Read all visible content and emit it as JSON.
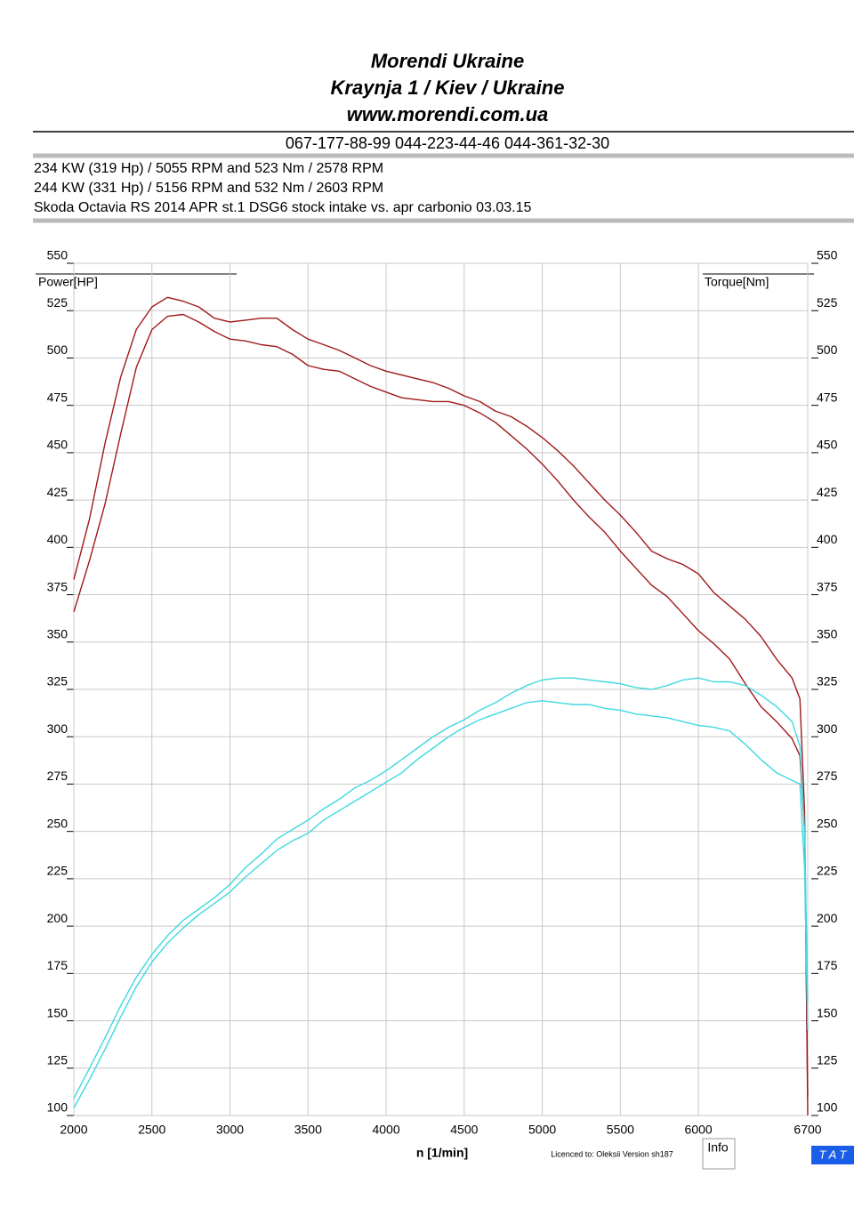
{
  "header": {
    "lines": [
      "Morendi Ukraine",
      "Kraynja 1 / Kiev / Ukraine",
      "www.morendi.com.ua"
    ],
    "phone": "067-177-88-99 044-223-44-46 044-361-32-30",
    "info": [
      "234 KW (319 Hp) /  5055 RPM  and   523 Nm /  2578 RPM",
      "244 KW (331 Hp) /  5156 RPM  and   532 Nm /  2603 RPM",
      "Skoda Octavia RS 2014 APR st.1 DSG6 stock intake vs. apr carbonio 03.03.15"
    ]
  },
  "chart_data": {
    "type": "line",
    "xlabel": "n  [1/min]",
    "ylabel": "Power[HP]",
    "y2label": "Torque[Nm]",
    "xlim": [
      2000,
      6700
    ],
    "xticks": [
      2000,
      2500,
      3000,
      3500,
      4000,
      4500,
      5000,
      5500,
      6000,
      6700
    ],
    "ylim": [
      100,
      550
    ],
    "yticks": [
      100,
      125,
      150,
      175,
      200,
      225,
      250,
      275,
      300,
      325,
      350,
      375,
      400,
      425,
      450,
      475,
      500,
      525,
      550
    ],
    "y2lim": [
      100,
      550
    ],
    "y2ticks": [
      100,
      125,
      150,
      175,
      200,
      225,
      250,
      275,
      300,
      325,
      350,
      375,
      400,
      425,
      450,
      475,
      500,
      525,
      550
    ],
    "grid": true,
    "x": [
      2000,
      2100,
      2200,
      2300,
      2400,
      2500,
      2600,
      2700,
      2800,
      2900,
      3000,
      3100,
      3200,
      3300,
      3400,
      3500,
      3600,
      3700,
      3800,
      3900,
      4000,
      4100,
      4200,
      4300,
      4400,
      4500,
      4600,
      4700,
      4800,
      4900,
      5000,
      5100,
      5200,
      5300,
      5400,
      5500,
      5600,
      5700,
      5800,
      5900,
      6000,
      6100,
      6200,
      6300,
      6400,
      6500,
      6600,
      6650,
      6680,
      6700
    ],
    "series": [
      {
        "color": "#a01818",
        "axis": "y2",
        "values": [
          383,
          415,
          455,
          490,
          515,
          527,
          532,
          530,
          527,
          521,
          519,
          520,
          521,
          521,
          515,
          510,
          507,
          504,
          500,
          496,
          493,
          491,
          489,
          487,
          484,
          480,
          477,
          472,
          469,
          464,
          458,
          451,
          443,
          434,
          425,
          417,
          408,
          398,
          394,
          391,
          386,
          376,
          369,
          362,
          353,
          341,
          331,
          320,
          260,
          100
        ]
      },
      {
        "color": "#a01818",
        "axis": "y2",
        "values": [
          366,
          393,
          423,
          460,
          495,
          515,
          522,
          523,
          519,
          514,
          510,
          509,
          507,
          506,
          502,
          496,
          494,
          493,
          489,
          485,
          482,
          479,
          478,
          477,
          477,
          475,
          471,
          466,
          459,
          452,
          444,
          435,
          425,
          416,
          408,
          398,
          389,
          380,
          374,
          365,
          356,
          349,
          341,
          328,
          316,
          308,
          299,
          290,
          250,
          110
        ]
      },
      {
        "color": "#40d8e0",
        "values": [
          109,
          125,
          141,
          158,
          173,
          185,
          195,
          203,
          209,
          215,
          222,
          231,
          238,
          246,
          251,
          256,
          262,
          267,
          273,
          277,
          282,
          288,
          294,
          300,
          305,
          309,
          314,
          318,
          323,
          327,
          330,
          331,
          331,
          330,
          329,
          328,
          326,
          325,
          327,
          330,
          331,
          329,
          329,
          327,
          322,
          316,
          308,
          295,
          250,
          160
        ]
      },
      {
        "color": "#40d8e0",
        "values": [
          104,
          119,
          135,
          152,
          168,
          181,
          191,
          199,
          206,
          212,
          218,
          226,
          233,
          240,
          245,
          249,
          256,
          261,
          266,
          271,
          276,
          281,
          288,
          294,
          300,
          305,
          309,
          312,
          315,
          318,
          319,
          318,
          317,
          317,
          315,
          314,
          312,
          311,
          310,
          308,
          306,
          305,
          303,
          296,
          288,
          281,
          277,
          275,
          230,
          145
        ]
      }
    ]
  },
  "footer": {
    "license": "Licenced to: Oleksii   Version sh187",
    "info_button": "Info",
    "badge": "T A T"
  }
}
